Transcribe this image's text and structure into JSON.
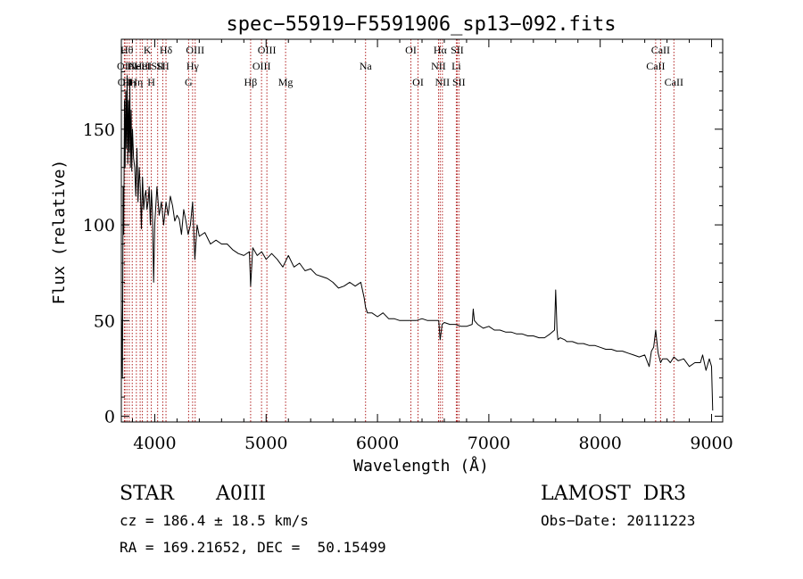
{
  "chart_data": {
    "type": "line",
    "title": "spec−55919−F5591906_sp13−092.fits",
    "xlabel": "Wavelength (Å)",
    "ylabel": "Flux (relative)",
    "xlim": [
      3700,
      9100
    ],
    "ylim": [
      -3,
      197
    ],
    "x_ticks": [
      {
        "value": 4000,
        "label": "4000"
      },
      {
        "value": 5000,
        "label": "5000"
      },
      {
        "value": 6000,
        "label": "6000"
      },
      {
        "value": 7000,
        "label": "7000"
      },
      {
        "value": 8000,
        "label": "8000"
      },
      {
        "value": 9000,
        "label": "9000"
      }
    ],
    "y_ticks": [
      {
        "value": 0,
        "label": "0"
      },
      {
        "value": 50,
        "label": "50"
      },
      {
        "value": 100,
        "label": "100"
      },
      {
        "value": 150,
        "label": "150"
      }
    ],
    "x_minor_step": 200,
    "y_minor_step": 10,
    "series": [
      {
        "name": "flux",
        "x": [
          3700,
          3705,
          3710,
          3716,
          3722,
          3728,
          3734,
          3740,
          3746,
          3752,
          3758,
          3764,
          3770,
          3776,
          3782,
          3788,
          3794,
          3800,
          3810,
          3820,
          3830,
          3840,
          3850,
          3860,
          3870,
          3880,
          3890,
          3900,
          3910,
          3920,
          3930,
          3940,
          3950,
          3960,
          3970,
          3980,
          3990,
          4000,
          4020,
          4040,
          4060,
          4080,
          4101,
          4120,
          4140,
          4160,
          4180,
          4200,
          4220,
          4240,
          4260,
          4280,
          4300,
          4320,
          4340,
          4360,
          4380,
          4400,
          4450,
          4500,
          4550,
          4600,
          4650,
          4700,
          4750,
          4800,
          4850,
          4861,
          4880,
          4920,
          4960,
          5000,
          5050,
          5100,
          5150,
          5200,
          5250,
          5300,
          5350,
          5400,
          5450,
          5500,
          5550,
          5600,
          5650,
          5700,
          5750,
          5800,
          5850,
          5880,
          5893,
          5910,
          5950,
          6000,
          6050,
          6100,
          6150,
          6200,
          6250,
          6300,
          6350,
          6400,
          6450,
          6500,
          6550,
          6563,
          6580,
          6600,
          6650,
          6700,
          6750,
          6800,
          6850,
          6860,
          6870,
          6900,
          6950,
          7000,
          7050,
          7100,
          7150,
          7200,
          7250,
          7300,
          7350,
          7400,
          7450,
          7500,
          7550,
          7590,
          7600,
          7605,
          7612,
          7620,
          7640,
          7680,
          7700,
          7750,
          7800,
          7850,
          7900,
          7950,
          8000,
          8050,
          8100,
          8150,
          8200,
          8250,
          8300,
          8350,
          8400,
          8440,
          8460,
          8480,
          8498,
          8520,
          8542,
          8560,
          8600,
          8630,
          8662,
          8700,
          8750,
          8800,
          8850,
          8900,
          8920,
          8950,
          8980,
          9000,
          9005,
          9010
        ],
        "values": [
          60,
          40,
          20,
          120,
          95,
          165,
          130,
          170,
          140,
          178,
          132,
          165,
          138,
          176,
          130,
          160,
          128,
          150,
          135,
          130,
          115,
          140,
          112,
          130,
          120,
          98,
          125,
          108,
          115,
          118,
          108,
          112,
          120,
          100,
          118,
          106,
          70,
          100,
          120,
          105,
          112,
          100,
          112,
          105,
          115,
          110,
          102,
          105,
          103,
          95,
          108,
          102,
          95,
          100,
          112,
          82,
          100,
          94,
          96,
          90,
          92,
          90,
          90,
          87,
          85,
          84,
          86,
          68,
          88,
          84,
          86,
          82,
          85,
          82,
          78,
          84,
          78,
          80,
          76,
          77,
          74,
          73,
          72,
          70,
          67,
          68,
          70,
          68,
          70,
          62,
          57,
          54,
          54,
          52,
          54,
          51,
          51,
          50,
          50,
          50,
          50,
          51,
          50,
          50,
          50,
          40,
          48,
          49,
          48,
          48,
          47,
          47,
          48,
          56,
          50,
          48,
          46,
          47,
          45,
          45,
          44,
          44,
          43,
          43,
          42,
          42,
          41,
          41,
          43,
          45,
          66,
          58,
          45,
          40,
          41,
          40,
          39,
          39,
          38,
          38,
          37,
          37,
          36,
          35,
          35,
          34,
          34,
          33,
          32,
          31,
          32,
          26,
          34,
          36,
          45,
          33,
          28,
          30,
          30,
          28,
          31,
          29,
          30,
          26,
          28,
          28,
          32,
          24,
          30,
          26,
          15,
          3
        ]
      }
    ],
    "line_markers": [
      {
        "wavelength": 3727,
        "label": "OII",
        "row": 1
      },
      {
        "wavelength": 3733,
        "label": "OII",
        "row": 2
      },
      {
        "wavelength": 3750,
        "label": "Hθ",
        "row": 0
      },
      {
        "wavelength": 3771,
        "label": "Hη",
        "row": 2
      },
      {
        "wavelength": 3798,
        "label": "Hι",
        "row": 1
      },
      {
        "wavelength": 3835,
        "label": "Hη",
        "row": 2
      },
      {
        "wavelength": 3869,
        "label": "NeIII",
        "row": 1
      },
      {
        "wavelength": 3889,
        "label": "HeI",
        "row": 1
      },
      {
        "wavelength": 3934,
        "label": "K",
        "row": 0
      },
      {
        "wavelength": 3969,
        "label": "H",
        "row": 2
      },
      {
        "wavelength": 4026,
        "label": "SII",
        "row": 1
      },
      {
        "wavelength": 4072,
        "label": "SII",
        "row": 1
      },
      {
        "wavelength": 4101,
        "label": "Hδ",
        "row": 0
      },
      {
        "wavelength": 4304,
        "label": "G",
        "row": 2
      },
      {
        "wavelength": 4340,
        "label": "Hγ",
        "row": 1
      },
      {
        "wavelength": 4363,
        "label": "OIII",
        "row": 0
      },
      {
        "wavelength": 4861,
        "label": "Hβ",
        "row": 2
      },
      {
        "wavelength": 4959,
        "label": "OIII",
        "row": 1
      },
      {
        "wavelength": 5007,
        "label": "OIII",
        "row": 0
      },
      {
        "wavelength": 5175,
        "label": "Mg",
        "row": 2
      },
      {
        "wavelength": 5893,
        "label": "Na",
        "row": 1
      },
      {
        "wavelength": 6300,
        "label": "OI",
        "row": 0
      },
      {
        "wavelength": 6364,
        "label": "OI",
        "row": 2
      },
      {
        "wavelength": 6548,
        "label": "NII",
        "row": 1
      },
      {
        "wavelength": 6563,
        "label": "Hα",
        "row": 0
      },
      {
        "wavelength": 6583,
        "label": "NII",
        "row": 2
      },
      {
        "wavelength": 6708,
        "label": "Li",
        "row": 1
      },
      {
        "wavelength": 6716,
        "label": "SII",
        "row": 0
      },
      {
        "wavelength": 6731,
        "label": "SII",
        "row": 2
      },
      {
        "wavelength": 8498,
        "label": "CaII",
        "row": 1
      },
      {
        "wavelength": 8542,
        "label": "CaII",
        "row": 0
      },
      {
        "wavelength": 8662,
        "label": "CaII",
        "row": 2
      }
    ],
    "annotations": {
      "object_class": "STAR",
      "subclass": "A0III",
      "survey": "LAMOST  DR3",
      "redshift": "cz = 186.4 ± 18.5 km/s",
      "obs_date": "Obs−Date: 20111223",
      "coordinates": "RA = 169.21652, DEC =  50.15499"
    }
  }
}
